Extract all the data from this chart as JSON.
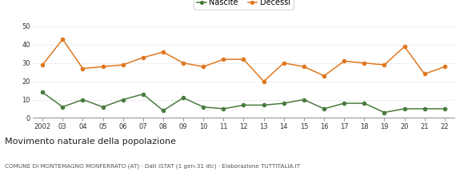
{
  "years": [
    "2002",
    "03",
    "04",
    "05",
    "06",
    "07",
    "08",
    "09",
    "10",
    "11",
    "12",
    "13",
    "14",
    "15",
    "16",
    "17",
    "18",
    "19",
    "20",
    "21",
    "22"
  ],
  "nascite": [
    14,
    6,
    10,
    6,
    10,
    13,
    4,
    11,
    6,
    5,
    7,
    7,
    8,
    10,
    5,
    8,
    8,
    3,
    5,
    5,
    5
  ],
  "decessi": [
    29,
    43,
    27,
    28,
    29,
    33,
    36,
    30,
    28,
    32,
    32,
    20,
    30,
    28,
    23,
    31,
    30,
    29,
    39,
    24,
    28
  ],
  "nascite_color": "#4a7c3f",
  "decessi_color": "#e07820",
  "ylim": [
    0,
    50
  ],
  "yticks": [
    0,
    10,
    20,
    30,
    40,
    50
  ],
  "grid_color": "#c8c8c8",
  "title": "Movimento naturale della popolazione",
  "subtitle": "COMUNE DI MONTEMAGNO MONFERRATO (AT) · Dati ISTAT (1 gen-31 dic) · Elaborazione TUTTITALIA.IT",
  "legend_nascite": "Nascite",
  "legend_decessi": "Decessi",
  "bg_color": "#ffffff"
}
